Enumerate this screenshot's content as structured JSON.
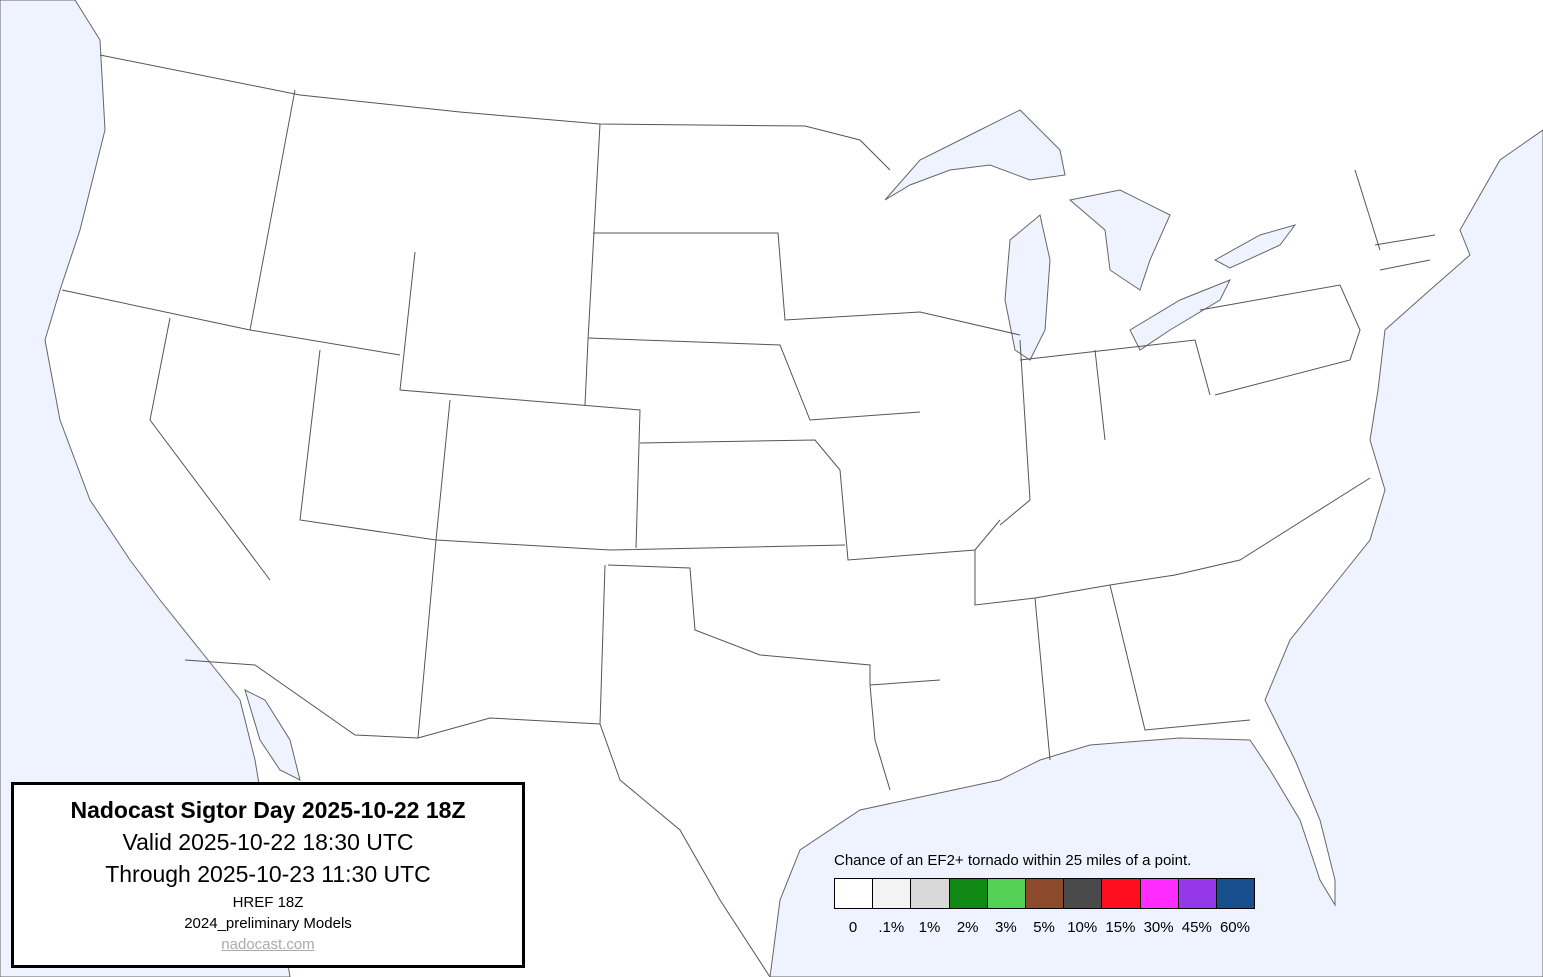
{
  "title_box": {
    "title": "Nadocast Sigtor Day 2025-10-22 18Z",
    "valid": "Valid 2025-10-22 18:30 UTC",
    "through": "Through 2025-10-23 11:30 UTC",
    "model": "HREF 18Z",
    "models_version": "2024_preliminary Models",
    "link": "nadocast.com"
  },
  "legend": {
    "caption": "Chance of an EF2+ tornado within 25 miles of a point.",
    "items": [
      {
        "label": "0",
        "color": "#ffffff"
      },
      {
        "label": ".1%",
        "color": "#f3f3f3"
      },
      {
        "label": "1%",
        "color": "#d9d9d9"
      },
      {
        "label": "2%",
        "color": "#118a15"
      },
      {
        "label": "3%",
        "color": "#55d157"
      },
      {
        "label": "5%",
        "color": "#8b4a2b"
      },
      {
        "label": "10%",
        "color": "#4a4a4a"
      },
      {
        "label": "15%",
        "color": "#ff0e1f"
      },
      {
        "label": "30%",
        "color": "#ff2bff"
      },
      {
        "label": "45%",
        "color": "#9438ea"
      },
      {
        "label": "60%",
        "color": "#164f8b"
      }
    ]
  },
  "colors": {
    "water": "#eef3ff",
    "land": "#ffffff",
    "borders": "#555555"
  }
}
